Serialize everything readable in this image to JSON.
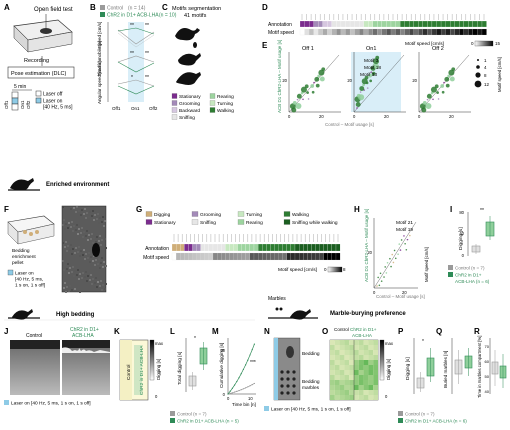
{
  "panel_letters": {
    "A": "A",
    "B": "B",
    "C": "C",
    "D": "D",
    "E": "E",
    "F": "F",
    "G": "G",
    "H": "H",
    "I": "I",
    "J": "J",
    "K": "K",
    "L": "L",
    "M": "M",
    "N": "N",
    "O": "O",
    "P": "P",
    "Q": "Q",
    "R": "R"
  },
  "colors": {
    "control": "#9a9a9a",
    "chr2": "#2e8b57",
    "chr2_light": "#8fcf9b",
    "laser": "#8ecbe6",
    "purple": "#7b2c8e",
    "tan": "#cfae78",
    "dark": "#1a1a1a"
  },
  "panelA": {
    "title": "Open field test",
    "recording": "Recording",
    "pose": "Pose estimation (DLC)",
    "scale": "5 min",
    "laser_off": "Laser off",
    "laser_on": "Laser on",
    "laser_params": "[40 Hz, 5 ms]",
    "epochs": [
      "Off1",
      "On1",
      "Off2"
    ]
  },
  "panelB": {
    "legend_control": "Control",
    "legend_control_n": "(n = 14)",
    "legend_chr2": "ChR2 in D1+ ACB-LHA",
    "legend_chr2_n": "(n = 10)",
    "xticks": [
      "Off1",
      "On1",
      "Off2"
    ],
    "speed_label": "Speed [cm/s]",
    "time_label": "Time immobile [s]",
    "angular_label": "Angular speed [rad/s]",
    "sig": [
      "**",
      "**",
      "**",
      "**",
      "*",
      "**"
    ]
  },
  "panelC": {
    "title": "Motifs segmentation",
    "subtitle": "41 motifs",
    "legend": [
      {
        "label": "Stationary",
        "color": "#7b2c8e"
      },
      {
        "label": "Grooming",
        "color": "#a38ab8"
      },
      {
        "label": "Backward",
        "color": "#d6c7e0"
      },
      {
        "label": "Sniffing",
        "color": "#e6e6e6"
      },
      {
        "label": "Rearing",
        "color": "#9dd49f"
      },
      {
        "label": "Turning",
        "color": "#c7e8c0"
      },
      {
        "label": "Walking",
        "color": "#2e7d32"
      }
    ]
  },
  "panelD": {
    "annotation": "Annotation",
    "motif_speed": "Motif speed",
    "colorbar_label": "Motif speed [cm/s]",
    "cb_min": "0",
    "cb_max": "15"
  },
  "panelE": {
    "titles": [
      "Off 1",
      "On1",
      "Off 2"
    ],
    "ylabel": "ACB D1 ChR2-LHA – Motif usage [s]",
    "xlabel": "Control – Motif usage [s]",
    "annotations": [
      "Motif 3",
      "Motif 18",
      "Motif 33"
    ],
    "ytick": "20",
    "xticks": [
      "0",
      "20"
    ],
    "size_legend": [
      "1",
      "4",
      "8",
      "12"
    ],
    "size_title": "Motif speed [cm/s]"
  },
  "panelF": {
    "title": "Enriched environment",
    "pellet": "Bedding enrichment pellet",
    "laser": "Laser on",
    "laser_params": "[40 Hz, 5 ms, 1 s on, 1 s off]"
  },
  "panelG": {
    "legend": [
      {
        "label": "Digging",
        "color": "#cfae78"
      },
      {
        "label": "Grooming",
        "color": "#a38ab8"
      },
      {
        "label": "Turning",
        "color": "#c7e8c0"
      },
      {
        "label": "Walking",
        "color": "#2e7d32"
      },
      {
        "label": "Stationary",
        "color": "#7b2c8e"
      },
      {
        "label": "Sniffing",
        "color": "#e6e6e6"
      },
      {
        "label": "Rearing",
        "color": "#9dd49f"
      },
      {
        "label": "Sniffing while walking",
        "color": "#1b5e20"
      }
    ],
    "annotation": "Annotation",
    "motif_speed": "Motif speed",
    "colorbar_label": "Motif speed [cm/s]",
    "cb_min": "0",
    "cb_max": "8"
  },
  "panelH": {
    "annotations": [
      "Motif 21",
      "Motif 19"
    ],
    "ylabel": "ACB D1 ChR2-LHA – Motif usage [s]",
    "xlabel": "Control – Motif usage [s]",
    "ytick": "20",
    "xticks": [
      "0",
      "20"
    ],
    "size_title": "Motif speed [cm/s]"
  },
  "panelI": {
    "ylabel": "Digging [s]",
    "yticks": [
      "0",
      "40",
      "80"
    ],
    "sig": "**",
    "legend_control": "Control (n = 7)",
    "legend_chr2": "ChR2 in D1+ ACB-LHA (n = 6)"
  },
  "section_high": {
    "title": "High bedding"
  },
  "panelJ": {
    "control": "Control",
    "chr2": "ChR2 in D1+ ACB-LHA"
  },
  "panelK": {
    "control": "Control",
    "chr2": "ChR2 in D1+ ACB-LHA",
    "cb_label": "Digging [s]",
    "cb_min": "0",
    "cb_max": "max"
  },
  "panelL": {
    "ylabel": "Total digging [s]",
    "sig": "*"
  },
  "panelM": {
    "ylabel": "Cumulative digging [s]",
    "xlabel": "Time bin [n]",
    "xticks": [
      "0",
      "10"
    ],
    "yticks": [
      "0",
      "20"
    ],
    "sig": "***"
  },
  "laser_note": "Laser on [40 Hz, 5 ms, 1 s on, 1 s off]",
  "legend_LM": {
    "control": "Control (n = 7)",
    "chr2": "ChR2 in D1+ ACB-LHA (n = 5)"
  },
  "section_marble": {
    "title": "Marble-burying preference",
    "marbles": "Marbles"
  },
  "panelN": {
    "bedding": "Bedding",
    "bedding_marbles": "Bedding marbles"
  },
  "panelO": {
    "control": "Control",
    "chr2": "ChR2 in D1+ ACB-LHA",
    "cb_label": "Digging [s]",
    "cb_min": "0",
    "cb_max": "max"
  },
  "panelP": {
    "ylabel": "Digging [s]",
    "sig": "*"
  },
  "panelQ": {
    "ylabel": "Buried marbles [n]"
  },
  "panelR": {
    "ylabel": "Time in marbles compartment [%]",
    "yticks": [
      "40",
      "50",
      "60",
      "70"
    ]
  },
  "legend_PQR": {
    "control": "Control (n = 7)",
    "chr2": "ChR2 in D1+ ACB-LHA (n = 6)"
  }
}
